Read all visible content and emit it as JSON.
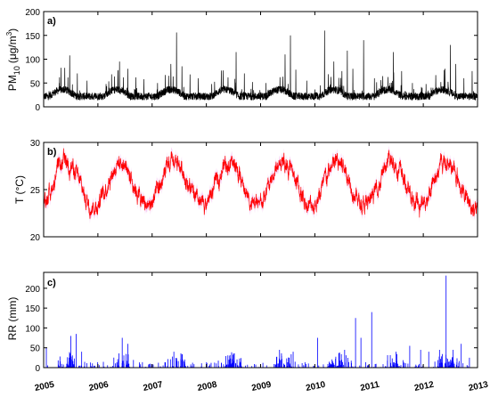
{
  "chart_data": [
    {
      "type": "line",
      "panel_label": "a)",
      "ylabel": "PM",
      "ylabel_sub": "10",
      "ylabel_unit": "(μg/m",
      "ylabel_sup": "3",
      "ylabel_close": ")",
      "ylim": [
        0,
        200
      ],
      "yticks": [
        "0",
        "50",
        "100",
        "150",
        "200"
      ],
      "series": [
        {
          "color": "#000000",
          "baseline": 22,
          "spikes": [
            [
              2005.32,
              82
            ],
            [
              2005.48,
              108
            ],
            [
              2005.62,
              70
            ],
            [
              2005.8,
              55
            ],
            [
              2006.15,
              48
            ],
            [
              2006.4,
              95
            ],
            [
              2006.55,
              80
            ],
            [
              2006.7,
              62
            ],
            [
              2006.85,
              58
            ],
            [
              2007.1,
              50
            ],
            [
              2007.45,
              156
            ],
            [
              2007.55,
              85
            ],
            [
              2007.7,
              68
            ],
            [
              2007.85,
              60
            ],
            [
              2008.1,
              48
            ],
            [
              2008.4,
              62
            ],
            [
              2008.55,
              115
            ],
            [
              2008.7,
              70
            ],
            [
              2008.85,
              52
            ],
            [
              2009.1,
              50
            ],
            [
              2009.45,
              110
            ],
            [
              2009.55,
              150
            ],
            [
              2009.65,
              78
            ],
            [
              2009.85,
              55
            ],
            [
              2010.1,
              45
            ],
            [
              2010.18,
              160
            ],
            [
              2010.35,
              95
            ],
            [
              2010.5,
              75
            ],
            [
              2010.6,
              118
            ],
            [
              2010.7,
              80
            ],
            [
              2010.9,
              140
            ],
            [
              2011.1,
              60
            ],
            [
              2011.45,
              115
            ],
            [
              2011.6,
              75
            ],
            [
              2011.8,
              50
            ],
            [
              2012.05,
              48
            ],
            [
              2012.4,
              80
            ],
            [
              2012.5,
              130
            ],
            [
              2012.6,
              90
            ],
            [
              2012.75,
              60
            ],
            [
              2012.9,
              75
            ]
          ]
        }
      ]
    },
    {
      "type": "line",
      "panel_label": "b)",
      "ylabel": "T (°C)",
      "ylim": [
        20,
        30
      ],
      "yticks": [
        "20",
        "25",
        "30"
      ],
      "series": [
        {
          "color": "#ff0000",
          "band_color": "#f3b6f0",
          "mean": 25.6,
          "amplitude": 2.3,
          "peak_phase": 0.42
        }
      ]
    },
    {
      "type": "line",
      "panel_label": "c)",
      "ylabel": "RR (mm)",
      "ylim": [
        0,
        240
      ],
      "yticks": [
        "0",
        "50",
        "100",
        "150",
        "200"
      ],
      "series": [
        {
          "color": "#0000ff",
          "spikes": [
            [
              2005.05,
              50
            ],
            [
              2005.5,
              80
            ],
            [
              2005.6,
              85
            ],
            [
              2005.7,
              40
            ],
            [
              2006.45,
              75
            ],
            [
              2006.55,
              60
            ],
            [
              2007.4,
              40
            ],
            [
              2008.5,
              35
            ],
            [
              2009.35,
              45
            ],
            [
              2009.6,
              40
            ],
            [
              2010.05,
              75
            ],
            [
              2010.55,
              45
            ],
            [
              2010.75,
              125
            ],
            [
              2010.85,
              75
            ],
            [
              2011.05,
              140
            ],
            [
              2011.5,
              40
            ],
            [
              2011.75,
              55
            ],
            [
              2011.95,
              45
            ],
            [
              2012.1,
              40
            ],
            [
              2012.3,
              45
            ],
            [
              2012.42,
              232
            ],
            [
              2012.55,
              45
            ],
            [
              2012.7,
              60
            ],
            [
              2012.85,
              25
            ]
          ]
        }
      ]
    }
  ],
  "x_axis": {
    "xlim": [
      2005,
      2013
    ],
    "ticks": [
      "2005",
      "2006",
      "2007",
      "2008",
      "2009",
      "2010",
      "2011",
      "2012",
      "2013"
    ]
  }
}
